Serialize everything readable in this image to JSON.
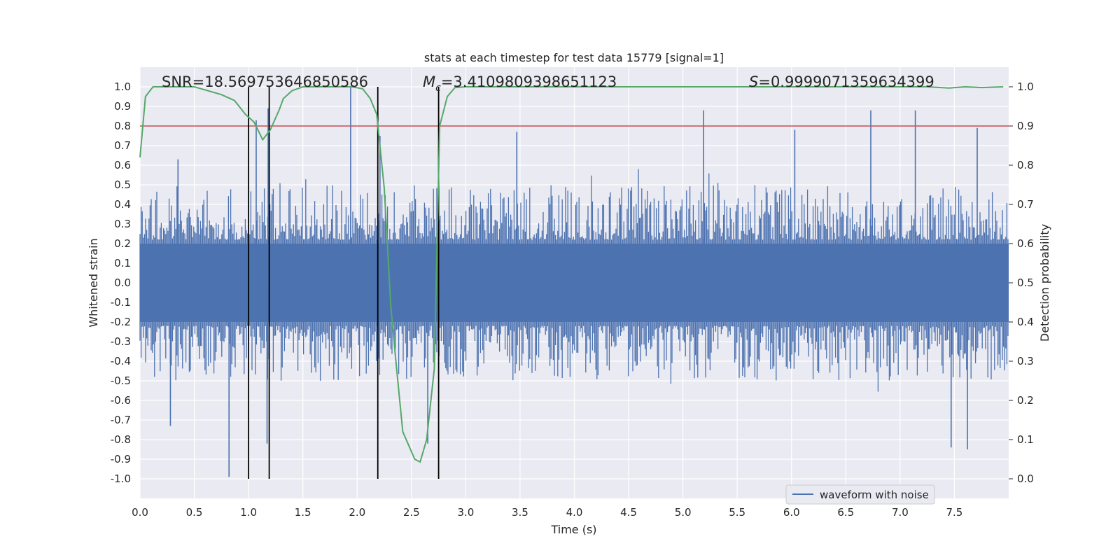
{
  "chart_data": {
    "type": "line",
    "title": "stats at each timestep for test data 15779 [signal=1]",
    "xlabel": "Time (s)",
    "ylabel": "Whitened strain",
    "y2label": "Detection probability",
    "xlim": [
      0.0,
      8.0
    ],
    "ylim": [
      -1.1,
      1.1
    ],
    "y2lim": [
      -0.05,
      1.05
    ],
    "x_ticks": [
      "0.0",
      "0.5",
      "1.0",
      "1.5",
      "2.0",
      "2.5",
      "3.0",
      "3.5",
      "4.0",
      "4.5",
      "5.0",
      "5.5",
      "6.0",
      "6.5",
      "7.0",
      "7.5"
    ],
    "y_ticks": [
      "1.0",
      "0.9",
      "0.8",
      "0.7",
      "0.6",
      "0.5",
      "0.4",
      "0.3",
      "0.2",
      "0.1",
      "0.0",
      "-0.1",
      "-0.2",
      "-0.3",
      "-0.4",
      "-0.5",
      "-0.6",
      "-0.7",
      "-0.8",
      "-0.9",
      "-1.0"
    ],
    "y2_ticks": [
      "1.0",
      "0.9",
      "0.8",
      "0.7",
      "0.6",
      "0.5",
      "0.4",
      "0.3",
      "0.2",
      "0.1",
      "0.0"
    ],
    "annotations": {
      "snr": "SNR=18.569753646850586",
      "mc_symbol": "M",
      "mc_sub": "c",
      "mc_value": "=3.4109809398651123",
      "s_symbol": "S",
      "s_value": "=0.9999071359634399"
    },
    "legend": {
      "label": "waveform with noise",
      "location": "lower right"
    },
    "series": [
      {
        "name": "waveform with noise",
        "color": "#4c72b0",
        "envelope_band": [
          -0.2,
          0.2
        ],
        "typical_peak": 0.5,
        "spikes": [
          [
            0.82,
            -0.99
          ],
          [
            1.07,
            0.83
          ],
          [
            1.18,
            0.89
          ],
          [
            1.17,
            -0.82
          ],
          [
            1.94,
            1.0
          ],
          [
            2.21,
            0.75
          ],
          [
            2.65,
            -0.82
          ],
          [
            2.75,
            0.7
          ],
          [
            5.19,
            0.88
          ],
          [
            6.73,
            0.88
          ],
          [
            7.14,
            0.88
          ],
          [
            7.62,
            -0.85
          ],
          [
            7.47,
            -0.84
          ],
          [
            3.47,
            0.77
          ],
          [
            6.03,
            0.78
          ],
          [
            7.71,
            0.79
          ],
          [
            0.35,
            0.63
          ],
          [
            0.28,
            -0.73
          ]
        ]
      },
      {
        "name": "detection probability",
        "color": "#55a868",
        "x": [
          0.0,
          0.05,
          0.12,
          0.3,
          0.5,
          0.75,
          0.87,
          0.97,
          1.05,
          1.13,
          1.2,
          1.28,
          1.32,
          1.4,
          1.5,
          1.7,
          1.95,
          2.05,
          2.12,
          2.18,
          2.25,
          2.31,
          2.36,
          2.42,
          2.53,
          2.58,
          2.64,
          2.71,
          2.76,
          2.83,
          2.9,
          3.0,
          5.0,
          6.0,
          7.0,
          7.25,
          7.45,
          7.6,
          7.75,
          7.95
        ],
        "values": [
          0.82,
          0.975,
          1.0,
          1.0,
          1.0,
          0.98,
          0.965,
          0.93,
          0.91,
          0.865,
          0.89,
          0.94,
          0.97,
          0.99,
          1.0,
          1.0,
          1.0,
          0.995,
          0.97,
          0.93,
          0.74,
          0.44,
          0.29,
          0.12,
          0.05,
          0.043,
          0.1,
          0.28,
          0.9,
          0.975,
          0.998,
          1.0,
          1.0,
          1.0,
          1.0,
          1.0,
          0.997,
          1.0,
          0.998,
          1.0
        ]
      }
    ],
    "threshold": {
      "value": 0.9,
      "axis": "right",
      "color": "#c44e52"
    },
    "vertical_markers": [
      1.0,
      1.19,
      2.19,
      2.75
    ],
    "marker_range": [
      -1.0,
      1.0
    ]
  }
}
